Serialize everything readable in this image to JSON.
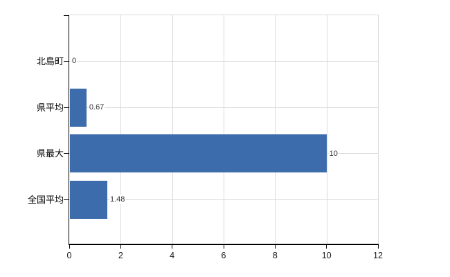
{
  "chart": {
    "background": "#ffffff",
    "bar_color": "#3d6cac",
    "grid_color": "#d9d9d9",
    "axis_color": "#000000",
    "value_label_color": "#333333",
    "tick_label_color": "#1a1a1a",
    "category_label_color": "#000000"
  },
  "chart_data": {
    "type": "bar",
    "orientation": "horizontal",
    "title": "",
    "categories": [
      "北島町",
      "県平均",
      "県最大",
      "全国平均"
    ],
    "values": [
      0,
      0.67,
      10,
      1.48
    ],
    "value_labels": [
      "0",
      "0.67",
      "10",
      "1.48"
    ],
    "x_ticks": [
      "0",
      "2",
      "4",
      "6",
      "8",
      "10",
      "12"
    ],
    "x_tick_values": [
      0,
      2,
      4,
      6,
      8,
      10,
      12
    ],
    "xlim": [
      0,
      12
    ],
    "grid": "on",
    "legend": "none"
  }
}
